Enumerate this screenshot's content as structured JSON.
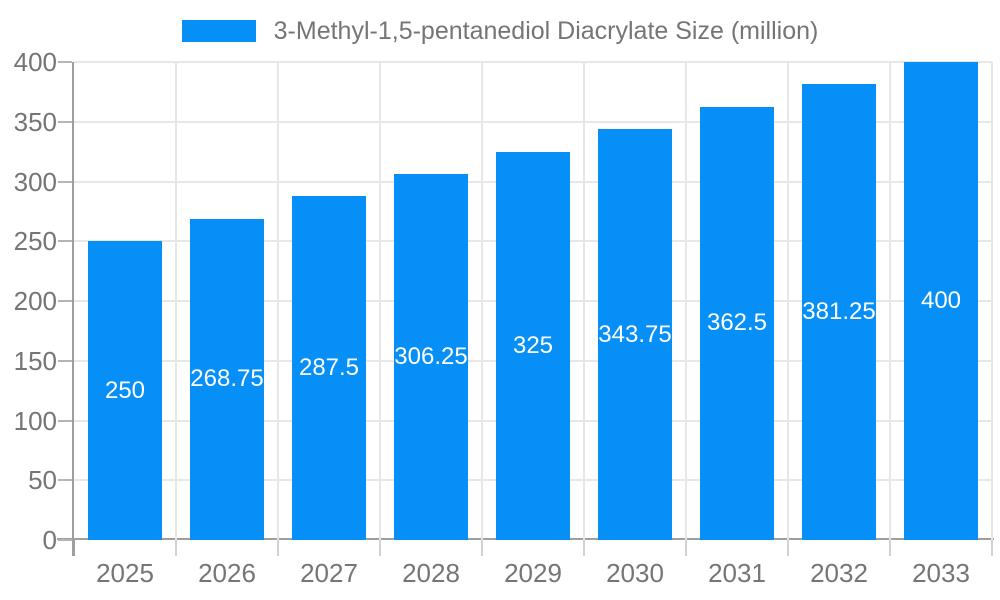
{
  "chart_data": {
    "type": "bar",
    "title": "3-Methyl-1,5-pentanediol Diacrylate Size (million)",
    "legend_position": "top",
    "categories": [
      "2025",
      "2026",
      "2027",
      "2028",
      "2029",
      "2030",
      "2031",
      "2032",
      "2033"
    ],
    "series": [
      {
        "name": "3-Methyl-1,5-pentanediol Diacrylate Size (million)",
        "values": [
          250,
          268.75,
          287.5,
          306.25,
          325,
          343.75,
          362.5,
          381.25,
          400
        ]
      }
    ],
    "value_labels": [
      "250",
      "268.75",
      "287.5",
      "306.25",
      "325",
      "343.75",
      "362.5",
      "381.25",
      "400"
    ],
    "xlabel": "",
    "ylabel": "",
    "ylim": [
      0,
      400
    ],
    "y_tick_step": 50,
    "y_tick_labels": [
      "0",
      "50",
      "100",
      "150",
      "200",
      "250",
      "300",
      "350",
      "400"
    ],
    "grid": true,
    "colors": {
      "bar": "#078ff8",
      "grid": "#e7e7e7",
      "axis": "#9e9e9e",
      "y_tick": "#b5b5b5",
      "x_tick": "#d2d2d2",
      "axis_text": "#757575",
      "bar_label": "#ffffff",
      "background": "#ffffff"
    }
  }
}
